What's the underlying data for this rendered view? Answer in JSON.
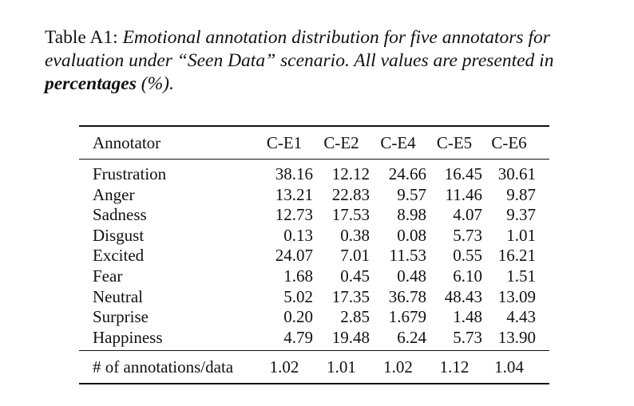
{
  "caption": {
    "label": "Table A1:",
    "text": "Emotional annotation distribution for five annotators for evaluation under “Seen Data” scenario. All values are presented in ",
    "bold": "percentages",
    "tail": " (%)."
  },
  "table": {
    "header": {
      "annotator": "Annotator",
      "columns": [
        "C-E1",
        "C-E2",
        "C-E4",
        "C-E5",
        "C-E6"
      ]
    },
    "rows": [
      {
        "label": "Frustration",
        "values": [
          "38.16",
          "12.12",
          "24.66",
          "16.45",
          "30.61"
        ]
      },
      {
        "label": "Anger",
        "values": [
          "13.21",
          "22.83",
          "9.57",
          "11.46",
          "9.87"
        ]
      },
      {
        "label": "Sadness",
        "values": [
          "12.73",
          "17.53",
          "8.98",
          "4.07",
          "9.37"
        ]
      },
      {
        "label": "Disgust",
        "values": [
          "0.13",
          "0.38",
          "0.08",
          "5.73",
          "1.01"
        ]
      },
      {
        "label": "Excited",
        "values": [
          "24.07",
          "7.01",
          "11.53",
          "0.55",
          "16.21"
        ]
      },
      {
        "label": "Fear",
        "values": [
          "1.68",
          "0.45",
          "0.48",
          "6.10",
          "1.51"
        ]
      },
      {
        "label": "Neutral",
        "values": [
          "5.02",
          "17.35",
          "36.78",
          "48.43",
          "13.09"
        ]
      },
      {
        "label": "Surprise",
        "values": [
          "0.20",
          "2.85",
          "1.679",
          "1.48",
          "4.43"
        ]
      },
      {
        "label": "Happiness",
        "values": [
          "4.79",
          "19.48",
          "6.24",
          "5.73",
          "13.90"
        ]
      }
    ],
    "footer": {
      "label": "# of annotations/data",
      "values": [
        "1.02",
        "1.01",
        "1.02",
        "1.12",
        "1.04"
      ]
    }
  }
}
